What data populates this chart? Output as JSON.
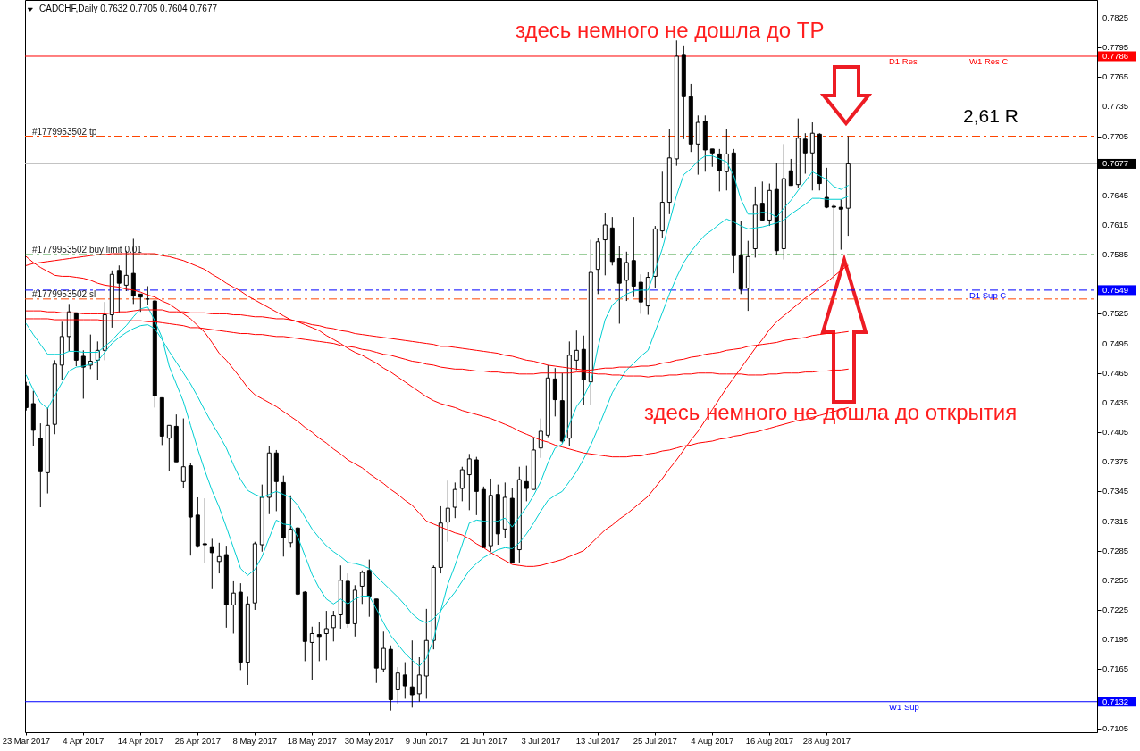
{
  "chart_data": {
    "type": "candlestick",
    "title": "CADCHF,Daily 0.7632 0.7705 0.7604 0.7677",
    "categories": [
      "23 Mar 2017",
      null,
      null,
      null,
      null,
      null,
      null,
      null,
      "4 Apr 2017",
      null,
      null,
      null,
      null,
      null,
      null,
      null,
      "14 Apr 2017",
      null,
      null,
      null,
      null,
      null,
      null,
      null,
      "26 Apr 2017",
      null,
      null,
      null,
      null,
      null,
      null,
      null,
      "8 May 2017",
      null,
      null,
      null,
      null,
      null,
      null,
      null,
      "18 May 2017",
      null,
      null,
      null,
      null,
      null,
      null,
      null,
      "30 May 2017",
      null,
      null,
      null,
      null,
      null,
      null,
      null,
      "9 Jun 2017",
      null,
      null,
      null,
      null,
      null,
      null,
      null,
      "21 Jun 2017",
      null,
      null,
      null,
      null,
      null,
      null,
      null,
      "3 Jul 2017",
      null,
      null,
      null,
      null,
      null,
      null,
      null,
      "13 Jul 2017",
      null,
      null,
      null,
      null,
      null,
      null,
      null,
      "25 Jul 2017",
      null,
      null,
      null,
      null,
      null,
      null,
      null,
      "4 Aug 2017",
      null,
      null,
      null,
      null,
      null,
      null,
      null,
      "16 Aug 2017",
      null,
      null,
      null,
      null,
      null,
      null,
      null,
      "28 Aug 2017",
      null,
      null,
      null
    ],
    "ohlc": [
      [
        0.7452,
        0.7456,
        0.7427,
        0.743
      ],
      [
        0.7434,
        0.7447,
        0.7391,
        0.7407
      ],
      [
        0.7399,
        0.7414,
        0.7329,
        0.7365
      ],
      [
        0.7364,
        0.743,
        0.7343,
        0.7412
      ],
      [
        0.7413,
        0.7478,
        0.7403,
        0.7474
      ],
      [
        0.7473,
        0.7517,
        0.7458,
        0.7502
      ],
      [
        0.7502,
        0.7535,
        0.7487,
        0.7527
      ],
      [
        0.7526,
        0.7526,
        0.7472,
        0.7478
      ],
      [
        0.7482,
        0.7488,
        0.7439,
        0.7471
      ],
      [
        0.7473,
        0.7504,
        0.7469,
        0.7477
      ],
      [
        0.7478,
        0.7497,
        0.7458,
        0.7488
      ],
      [
        0.7488,
        0.7537,
        0.7478,
        0.7524
      ],
      [
        0.7524,
        0.7569,
        0.7511,
        0.7565
      ],
      [
        0.7569,
        0.7574,
        0.7526,
        0.7556
      ],
      [
        0.7554,
        0.7589,
        0.7548,
        0.7564
      ],
      [
        0.7566,
        0.7601,
        0.7535,
        0.7543
      ],
      [
        0.7545,
        0.7545,
        0.7527,
        0.7542
      ],
      [
        0.754,
        0.7553,
        0.7534,
        0.754
      ],
      [
        0.7538,
        0.7539,
        0.743,
        0.7442
      ],
      [
        0.744,
        0.744,
        0.7392,
        0.7401
      ],
      [
        0.7399,
        0.7412,
        0.7366,
        0.7412
      ],
      [
        0.7411,
        0.7423,
        0.7375,
        0.7375
      ],
      [
        0.7355,
        0.7419,
        0.7348,
        0.737
      ],
      [
        0.7371,
        0.7374,
        0.728,
        0.7319
      ],
      [
        0.7321,
        0.7339,
        0.7288,
        0.729
      ],
      [
        0.7292,
        0.7338,
        0.7272,
        0.7291
      ],
      [
        0.7289,
        0.7297,
        0.7246,
        0.7283
      ],
      [
        0.7274,
        0.7293,
        0.7262,
        0.7279
      ],
      [
        0.7281,
        0.729,
        0.7207,
        0.723
      ],
      [
        0.723,
        0.7254,
        0.7201,
        0.7242
      ],
      [
        0.7243,
        0.7252,
        0.7164,
        0.7172
      ],
      [
        0.7172,
        0.7239,
        0.7149,
        0.7231
      ],
      [
        0.7232,
        0.7294,
        0.7225,
        0.7292
      ],
      [
        0.7291,
        0.7352,
        0.7284,
        0.7339
      ],
      [
        0.7339,
        0.7391,
        0.7322,
        0.7384
      ],
      [
        0.7384,
        0.7387,
        0.7325,
        0.7355
      ],
      [
        0.7354,
        0.7361,
        0.7279,
        0.7298
      ],
      [
        0.7293,
        0.7341,
        0.7288,
        0.7307
      ],
      [
        0.7308,
        0.7309,
        0.724,
        0.7241
      ],
      [
        0.7243,
        0.7244,
        0.7173,
        0.7193
      ],
      [
        0.7192,
        0.7208,
        0.7154,
        0.7201
      ],
      [
        0.72,
        0.7213,
        0.7173,
        0.7198
      ],
      [
        0.7201,
        0.7224,
        0.7174,
        0.7206
      ],
      [
        0.7207,
        0.7224,
        0.7193,
        0.7219
      ],
      [
        0.722,
        0.727,
        0.7206,
        0.7255
      ],
      [
        0.7254,
        0.7262,
        0.7207,
        0.7211
      ],
      [
        0.7211,
        0.725,
        0.7198,
        0.7245
      ],
      [
        0.7249,
        0.7265,
        0.7231,
        0.7263
      ],
      [
        0.7265,
        0.7276,
        0.7218,
        0.7239
      ],
      [
        0.7236,
        0.7236,
        0.7151,
        0.7166
      ],
      [
        0.7165,
        0.7203,
        0.7162,
        0.7186
      ],
      [
        0.7185,
        0.7189,
        0.7123,
        0.7134
      ],
      [
        0.7144,
        0.7167,
        0.713,
        0.7161
      ],
      [
        0.7159,
        0.7172,
        0.7135,
        0.7148
      ],
      [
        0.7147,
        0.7194,
        0.7126,
        0.7139
      ],
      [
        0.714,
        0.7177,
        0.7132,
        0.7159
      ],
      [
        0.7158,
        0.7226,
        0.7135,
        0.7194
      ],
      [
        0.7194,
        0.727,
        0.7185,
        0.7268
      ],
      [
        0.7268,
        0.733,
        0.7262,
        0.7313
      ],
      [
        0.7314,
        0.7356,
        0.7294,
        0.7328
      ],
      [
        0.7329,
        0.7354,
        0.7318,
        0.7347
      ],
      [
        0.7348,
        0.737,
        0.7335,
        0.7367
      ],
      [
        0.7362,
        0.7383,
        0.7326,
        0.7378
      ],
      [
        0.7377,
        0.738,
        0.7321,
        0.7345
      ],
      [
        0.7347,
        0.735,
        0.7288,
        0.7288
      ],
      [
        0.729,
        0.7358,
        0.7284,
        0.7341
      ],
      [
        0.7342,
        0.7352,
        0.7291,
        0.7302
      ],
      [
        0.7307,
        0.7354,
        0.7298,
        0.7339
      ],
      [
        0.7338,
        0.7348,
        0.7272,
        0.7273
      ],
      [
        0.7286,
        0.737,
        0.7273,
        0.7357
      ],
      [
        0.7355,
        0.7371,
        0.7335,
        0.7348
      ],
      [
        0.7347,
        0.7399,
        0.7347,
        0.7387
      ],
      [
        0.7389,
        0.7419,
        0.7379,
        0.7406
      ],
      [
        0.7402,
        0.7473,
        0.74,
        0.746
      ],
      [
        0.7459,
        0.747,
        0.7421,
        0.7438
      ],
      [
        0.7437,
        0.7465,
        0.7394,
        0.7396
      ],
      [
        0.7399,
        0.7497,
        0.7391,
        0.7483
      ],
      [
        0.7478,
        0.7508,
        0.7468,
        0.7488
      ],
      [
        0.7489,
        0.7503,
        0.7433,
        0.7458
      ],
      [
        0.7456,
        0.76,
        0.7433,
        0.7567
      ],
      [
        0.757,
        0.7602,
        0.7545,
        0.7598
      ],
      [
        0.76,
        0.7627,
        0.7564,
        0.7615
      ],
      [
        0.7612,
        0.7623,
        0.7574,
        0.7578
      ],
      [
        0.7581,
        0.7594,
        0.7515,
        0.7556
      ],
      [
        0.7559,
        0.7588,
        0.7538,
        0.7577
      ],
      [
        0.7579,
        0.7623,
        0.7542,
        0.7553
      ],
      [
        0.7557,
        0.7565,
        0.7525,
        0.7537
      ],
      [
        0.7533,
        0.7567,
        0.7524,
        0.7562
      ],
      [
        0.7563,
        0.7614,
        0.7551,
        0.7611
      ],
      [
        0.7609,
        0.7669,
        0.7602,
        0.7638
      ],
      [
        0.7638,
        0.7712,
        0.7626,
        0.7683
      ],
      [
        0.7682,
        0.7802,
        0.7675,
        0.7786
      ],
      [
        0.7787,
        0.7797,
        0.7702,
        0.7745
      ],
      [
        0.7745,
        0.7758,
        0.7689,
        0.7697
      ],
      [
        0.7697,
        0.7726,
        0.7666,
        0.7719
      ],
      [
        0.772,
        0.7726,
        0.7669,
        0.7691
      ],
      [
        0.7692,
        0.7692,
        0.7674,
        0.7688
      ],
      [
        0.7687,
        0.7692,
        0.7649,
        0.767
      ],
      [
        0.7669,
        0.7712,
        0.765,
        0.7687
      ],
      [
        0.7688,
        0.7692,
        0.7566,
        0.7584
      ],
      [
        0.7584,
        0.7619,
        0.7545,
        0.755
      ],
      [
        0.7551,
        0.7599,
        0.7528,
        0.7583
      ],
      [
        0.7591,
        0.7654,
        0.7582,
        0.7635
      ],
      [
        0.7637,
        0.7659,
        0.762,
        0.762
      ],
      [
        0.762,
        0.7657,
        0.7614,
        0.765
      ],
      [
        0.7651,
        0.7678,
        0.7585,
        0.7589
      ],
      [
        0.7591,
        0.7697,
        0.758,
        0.7662
      ],
      [
        0.767,
        0.7682,
        0.7655,
        0.7655
      ],
      [
        0.7656,
        0.7723,
        0.7653,
        0.7703
      ],
      [
        0.7702,
        0.7708,
        0.7667,
        0.7688
      ],
      [
        0.7688,
        0.7719,
        0.765,
        0.7708
      ],
      [
        0.7707,
        0.7708,
        0.765,
        0.7657
      ],
      [
        0.7643,
        0.7673,
        0.7632,
        0.7633
      ],
      [
        0.7634,
        0.7636,
        0.756,
        0.7633
      ],
      [
        0.7633,
        0.7641,
        0.759,
        0.7631
      ],
      [
        0.7632,
        0.7705,
        0.7604,
        0.7677
      ]
    ],
    "series": [
      {
        "type": "line",
        "color": "#00ced1",
        "values": [
          0.7515,
          0.7504,
          0.7494,
          0.7484,
          0.7484,
          0.7484,
          0.7487,
          0.7487,
          0.7486,
          0.7486,
          0.7486,
          0.7492,
          0.7498,
          0.7506,
          0.7513,
          0.7522,
          0.753,
          0.7532,
          0.7518,
          0.7501,
          0.7472,
          0.7454,
          0.7436,
          0.7412,
          0.7388,
          0.7366,
          0.7346,
          0.7329,
          0.7309,
          0.7288,
          0.7267,
          0.726,
          0.7266,
          0.7279,
          0.7298,
          0.7316,
          0.7312,
          0.7311,
          0.7299,
          0.728,
          0.7261,
          0.7247,
          0.7236,
          0.7231,
          0.7236,
          0.7231,
          0.7236,
          0.7239,
          0.7239,
          0.7226,
          0.7212,
          0.7199,
          0.719,
          0.7181,
          0.7174,
          0.7168,
          0.7176,
          0.7195,
          0.7224,
          0.7251,
          0.727,
          0.7291,
          0.7313,
          0.7316,
          0.7315,
          0.7314,
          0.7315,
          0.7318,
          0.7309,
          0.7319,
          0.7329,
          0.7341,
          0.7355,
          0.7374,
          0.7389,
          0.7393,
          0.7413,
          0.7431,
          0.7441,
          0.7456,
          0.7491,
          0.7519,
          0.7534,
          0.754,
          0.7545,
          0.7548,
          0.7549,
          0.7549,
          0.7569,
          0.7591,
          0.7618,
          0.7645,
          0.7666,
          0.7672,
          0.768,
          0.7685,
          0.7685,
          0.7682,
          0.7679,
          0.7665,
          0.7641,
          0.7626,
          0.7626,
          0.7628,
          0.7627,
          0.7623,
          0.7632,
          0.764,
          0.765,
          0.7659,
          0.7669,
          0.7665,
          0.7661,
          0.7654,
          0.7651,
          0.7655
        ]
      },
      {
        "type": "line",
        "color": "#00ced1",
        "values": [
          0.7463,
          0.7448,
          0.7435,
          0.7429,
          0.7442,
          0.7455,
          0.7467,
          0.7471,
          0.7472,
          0.7474,
          0.7477,
          0.7486,
          0.7495,
          0.7501,
          0.7506,
          0.751,
          0.7513,
          0.7514,
          0.751,
          0.7499,
          0.7487,
          0.7476,
          0.7465,
          0.7454,
          0.7441,
          0.7427,
          0.7414,
          0.7402,
          0.7389,
          0.7372,
          0.7357,
          0.7346,
          0.7342,
          0.7339,
          0.7342,
          0.7345,
          0.7342,
          0.7339,
          0.7331,
          0.7319,
          0.7307,
          0.7298,
          0.729,
          0.7284,
          0.7279,
          0.7273,
          0.7272,
          0.727,
          0.7267,
          0.7259,
          0.7252,
          0.7245,
          0.7238,
          0.723,
          0.7221,
          0.7215,
          0.7212,
          0.7216,
          0.7224,
          0.7234,
          0.7243,
          0.7254,
          0.7265,
          0.7272,
          0.7278,
          0.7282,
          0.7286,
          0.7288,
          0.7287,
          0.7293,
          0.7302,
          0.7313,
          0.7325,
          0.7336,
          0.7341,
          0.7345,
          0.7355,
          0.7365,
          0.7378,
          0.7392,
          0.7409,
          0.7427,
          0.7445,
          0.7457,
          0.7468,
          0.7475,
          0.7482,
          0.7488,
          0.7507,
          0.7526,
          0.7545,
          0.7562,
          0.7577,
          0.7588,
          0.7597,
          0.7605,
          0.761,
          0.7616,
          0.7621,
          0.7618,
          0.7614,
          0.7611,
          0.7612,
          0.7613,
          0.7615,
          0.7617,
          0.762,
          0.7626,
          0.7631,
          0.7636,
          0.7642,
          0.7642,
          0.7641,
          0.7641,
          0.7641,
          0.7644
        ]
      },
      {
        "type": "line",
        "color": "#ff0000",
        "values": [
          0.7583,
          0.7577,
          0.7572,
          0.7568,
          0.7564,
          0.7563,
          0.7563,
          0.7562,
          0.7561,
          0.7559,
          0.7556,
          0.7554,
          0.7553,
          0.7552,
          0.755,
          0.7549,
          0.7547,
          0.7544,
          0.7542,
          0.7538,
          0.7535,
          0.753,
          0.7525,
          0.752,
          0.7513,
          0.7506,
          0.7496,
          0.7485,
          0.7478,
          0.7469,
          0.746,
          0.745,
          0.7443,
          0.7439,
          0.7435,
          0.7431,
          0.7426,
          0.7421,
          0.7416,
          0.741,
          0.7405,
          0.7399,
          0.7394,
          0.7388,
          0.7383,
          0.7377,
          0.7373,
          0.7369,
          0.7363,
          0.7358,
          0.7353,
          0.7347,
          0.7342,
          0.7336,
          0.7331,
          0.7323,
          0.7315,
          0.7312,
          0.7309,
          0.7306,
          0.7303,
          0.7301,
          0.7297,
          0.7292,
          0.7288,
          0.7283,
          0.7279,
          0.7275,
          0.7271,
          0.727,
          0.7269,
          0.7269,
          0.727,
          0.7272,
          0.7274,
          0.7276,
          0.7279,
          0.7282,
          0.7285,
          0.7292,
          0.7299,
          0.7306,
          0.7311,
          0.7317,
          0.7322,
          0.7328,
          0.7334,
          0.734,
          0.7349,
          0.7358,
          0.7368,
          0.7377,
          0.7387,
          0.7397,
          0.7406,
          0.7417,
          0.7428,
          0.7439,
          0.745,
          0.746,
          0.747,
          0.748,
          0.749,
          0.7499,
          0.7509,
          0.7517,
          0.7523,
          0.7529,
          0.7535,
          0.7541,
          0.7546,
          0.7552,
          0.7557,
          0.7563,
          0.7569,
          0.7574
        ]
      },
      {
        "type": "line",
        "color": "#ff0000",
        "values": [
          0.7574,
          0.7576,
          0.7577,
          0.7578,
          0.7579,
          0.758,
          0.7581,
          0.7582,
          0.7583,
          0.7584,
          0.7585,
          0.7585,
          0.7586,
          0.7586,
          0.7586,
          0.7586,
          0.7586,
          0.7586,
          0.7586,
          0.7584,
          0.7583,
          0.7581,
          0.7579,
          0.7576,
          0.7573,
          0.757,
          0.7565,
          0.7561,
          0.7556,
          0.7552,
          0.7548,
          0.7543,
          0.7539,
          0.7535,
          0.7531,
          0.7527,
          0.7523,
          0.7519,
          0.7517,
          0.7514,
          0.7511,
          0.7508,
          0.7503,
          0.7499,
          0.7495,
          0.749,
          0.7486,
          0.7483,
          0.7479,
          0.7475,
          0.747,
          0.7466,
          0.7461,
          0.7456,
          0.7451,
          0.7446,
          0.7441,
          0.7437,
          0.7434,
          0.7432,
          0.743,
          0.7427,
          0.7425,
          0.7423,
          0.7421,
          0.7419,
          0.7416,
          0.7413,
          0.741,
          0.7406,
          0.7403,
          0.74,
          0.7397,
          0.7395,
          0.7392,
          0.739,
          0.7388,
          0.7386,
          0.7384,
          0.7383,
          0.7382,
          0.7381,
          0.738,
          0.738,
          0.738,
          0.7381,
          0.7381,
          0.7383,
          0.7384,
          0.7386,
          0.7387,
          0.7389,
          0.7391,
          0.7392,
          0.7394,
          0.7395,
          0.7396,
          0.7398,
          0.7399,
          0.7401,
          0.7402,
          0.7404,
          0.7405,
          0.7407,
          0.7409,
          0.7411,
          0.7413,
          0.7415,
          0.7417,
          0.7418,
          0.742,
          0.7422,
          0.7424,
          0.7426,
          0.7428,
          0.743
        ]
      },
      {
        "type": "line",
        "color": "#ff0000",
        "values": [
          0.7528,
          0.7528,
          0.7528,
          0.7527,
          0.7527,
          0.7526,
          0.7526,
          0.7526,
          0.7525,
          0.7525,
          0.7525,
          0.7525,
          0.7526,
          0.7527,
          0.7527,
          0.7528,
          0.7529,
          0.7529,
          0.7529,
          0.7529,
          0.7527,
          0.7527,
          0.7527,
          0.7526,
          0.7526,
          0.7526,
          0.7525,
          0.7525,
          0.7525,
          0.7524,
          0.7524,
          0.7523,
          0.7522,
          0.7522,
          0.7521,
          0.752,
          0.752,
          0.7519,
          0.7517,
          0.7516,
          0.7514,
          0.7513,
          0.7511,
          0.751,
          0.7508,
          0.7507,
          0.7505,
          0.7504,
          0.7503,
          0.7502,
          0.7501,
          0.75,
          0.7499,
          0.7498,
          0.7497,
          0.7496,
          0.7495,
          0.7494,
          0.7492,
          0.7492,
          0.7491,
          0.749,
          0.7489,
          0.7488,
          0.7487,
          0.7486,
          0.7485,
          0.7483,
          0.7482,
          0.748,
          0.7478,
          0.7477,
          0.7475,
          0.7473,
          0.7472,
          0.7471,
          0.747,
          0.7469,
          0.7468,
          0.7468,
          0.7469,
          0.747,
          0.747,
          0.7471,
          0.7471,
          0.7471,
          0.7472,
          0.7472,
          0.7473,
          0.7475,
          0.7476,
          0.7478,
          0.7479,
          0.7481,
          0.7482,
          0.7484,
          0.7485,
          0.7486,
          0.7488,
          0.7489,
          0.749,
          0.7492,
          0.7493,
          0.7494,
          0.7495,
          0.7496,
          0.7498,
          0.7499,
          0.75,
          0.7501,
          0.7503,
          0.7504,
          0.7505,
          0.7505,
          0.7506,
          0.7507
        ]
      },
      {
        "type": "line",
        "color": "#ff0000",
        "values": [
          0.752,
          0.752,
          0.752,
          0.752,
          0.7519,
          0.7519,
          0.7519,
          0.7519,
          0.7519,
          0.7519,
          0.7519,
          0.7518,
          0.7518,
          0.7518,
          0.7518,
          0.7518,
          0.7518,
          0.7517,
          0.7517,
          0.7516,
          0.7515,
          0.7514,
          0.7513,
          0.7511,
          0.7511,
          0.751,
          0.7509,
          0.7508,
          0.7507,
          0.7506,
          0.7505,
          0.7505,
          0.7504,
          0.7504,
          0.7503,
          0.7502,
          0.7502,
          0.7501,
          0.75,
          0.7499,
          0.7498,
          0.7497,
          0.7496,
          0.7495,
          0.7493,
          0.7492,
          0.7491,
          0.7489,
          0.7488,
          0.7486,
          0.7484,
          0.7483,
          0.7481,
          0.7479,
          0.7477,
          0.7476,
          0.7474,
          0.7473,
          0.7471,
          0.747,
          0.7469,
          0.7469,
          0.7468,
          0.7467,
          0.7467,
          0.7466,
          0.7466,
          0.7465,
          0.7465,
          0.7464,
          0.7464,
          0.7464,
          0.7465,
          0.7465,
          0.7465,
          0.7465,
          0.7465,
          0.7466,
          0.7466,
          0.7465,
          0.7464,
          0.7464,
          0.7463,
          0.7463,
          0.7462,
          0.7462,
          0.7462,
          0.7461,
          0.7462,
          0.7462,
          0.7463,
          0.7463,
          0.7464,
          0.7464,
          0.7465,
          0.7465,
          0.7465,
          0.7464,
          0.7464,
          0.7464,
          0.7464,
          0.7463,
          0.7463,
          0.7463,
          0.7464,
          0.7464,
          0.7465,
          0.7465,
          0.7465,
          0.7466,
          0.7466,
          0.7467,
          0.7467,
          0.7468,
          0.7468,
          0.7469
        ]
      }
    ],
    "ylim": [
      0.7101,
      0.7843
    ],
    "yticks": [
      0.7825,
      0.7795,
      0.7786,
      0.7765,
      0.7735,
      0.7705,
      0.7677,
      0.7645,
      0.7615,
      0.7585,
      0.7549,
      0.7525,
      0.7495,
      0.7465,
      0.7435,
      0.7405,
      0.7375,
      0.7345,
      0.7315,
      0.7285,
      0.7255,
      0.7225,
      0.7195,
      0.7165,
      0.7132,
      0.7105
    ],
    "ref_lines": [
      {
        "axis": "y",
        "value": 0.7786,
        "color": "#ff0000"
      },
      {
        "axis": "y",
        "value": 0.7705,
        "label": "#1779953502 tp",
        "color": "#ff4500",
        "line_style": "dashed"
      },
      {
        "axis": "y",
        "value": 0.7677,
        "color": "#c0c0c0"
      },
      {
        "axis": "y",
        "value": 0.7585,
        "label": "#1779953502 buy limit 0.01",
        "color": "#008000",
        "line_style": "dashed"
      },
      {
        "axis": "y",
        "value": 0.7549,
        "color": "#0000ff",
        "line_style": "dashed"
      },
      {
        "axis": "y",
        "value": 0.754,
        "label": "#1779953502 sl",
        "color": "#ff4500",
        "line_style": "dashed"
      },
      {
        "axis": "y",
        "value": 0.7132,
        "color": "#0000ff"
      }
    ],
    "annotations": [
      "здесь немного не дошла до TP",
      "2,61 R",
      "здесь немного не дошла до открытия",
      {
        "text": "D1 Res",
        "y": 0.7786
      },
      {
        "text": "W1 Res C",
        "y": 0.7786
      },
      {
        "text": "W1 Sup",
        "y": 0.7132
      },
      {
        "text": "D1 Sup C",
        "y": 0.7549
      }
    ]
  }
}
